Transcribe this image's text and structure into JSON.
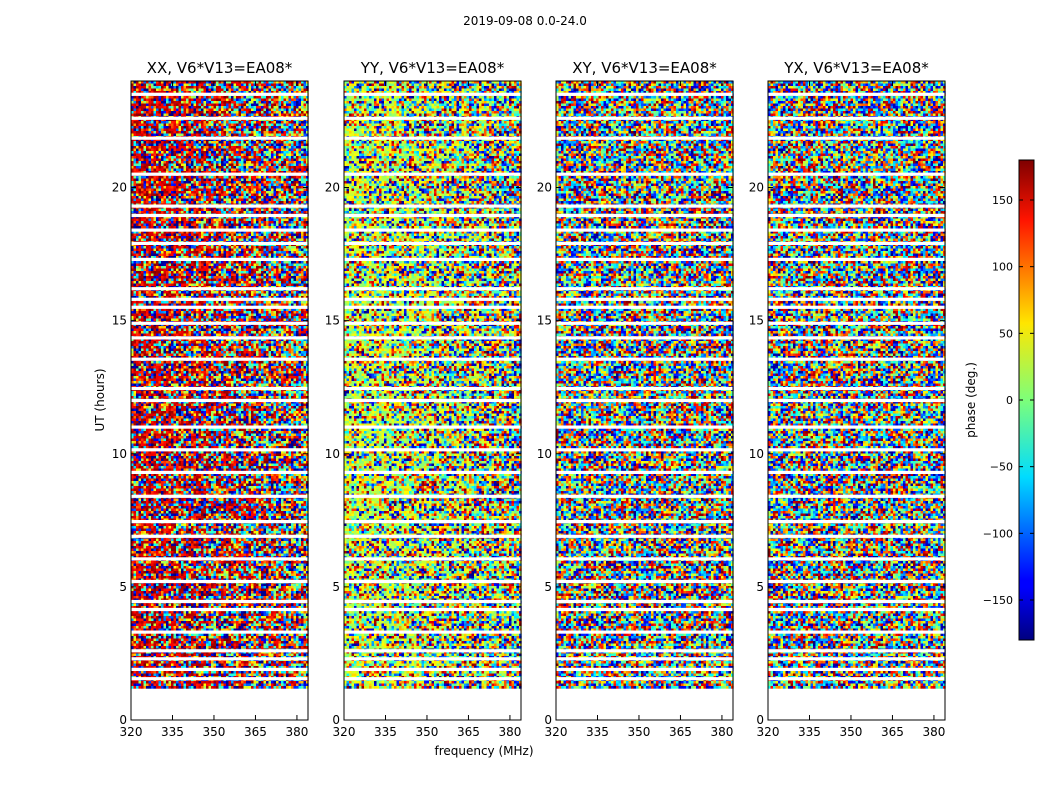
{
  "figure": {
    "suptitle": "2019-09-08 0.0-24.0"
  },
  "chart_data": {
    "type": "heatmap",
    "xlabel": "frequency (MHz)",
    "ylabel": "UT (hours)",
    "xlim": [
      320,
      384
    ],
    "ylim": [
      0,
      24
    ],
    "xticks": [
      320,
      335,
      350,
      365,
      380
    ],
    "yticks": [
      0,
      5,
      10,
      15,
      20
    ],
    "data_ut_range": [
      1.2,
      24
    ],
    "colorbar": {
      "label": "phase (deg.)",
      "range": [
        -180,
        180
      ],
      "ticks": [
        -150,
        -100,
        -50,
        0,
        50,
        100,
        150
      ],
      "colormap": "jet"
    },
    "panels": [
      {
        "title": "XX, V6*V13=EA08*",
        "bias_deg": 155,
        "coherence": 0.55
      },
      {
        "title": "YY, V6*V13=EA08*",
        "bias_deg": 25,
        "coherence": 0.5
      },
      {
        "title": "XY, V6*V13=EA08*",
        "bias_deg": 0,
        "coherence": 0.0
      },
      {
        "title": "YX, V6*V13=EA08*",
        "bias_deg": 0,
        "coherence": 0.0
      }
    ],
    "gaps_ut": [
      1.55,
      1.9,
      2.3,
      2.6,
      3.3,
      4.15,
      4.45,
      5.2,
      6.05,
      6.9,
      7.45,
      8.4,
      9.3,
      10.15,
      11.0,
      12.0,
      12.45,
      13.55,
      14.35,
      14.9,
      15.5,
      15.8,
      16.2,
      17.3,
      17.9,
      18.4,
      18.95,
      19.3,
      20.5,
      21.85,
      22.6,
      23.5
    ]
  }
}
